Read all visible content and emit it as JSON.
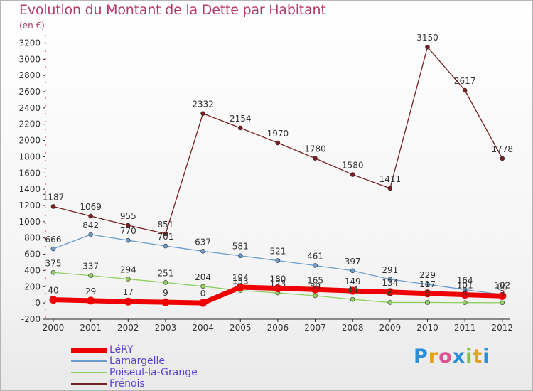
{
  "chart_data": {
    "type": "line",
    "title": "Evolution du Montant de la Dette par Habitant",
    "subtitle": "(en €)",
    "x": [
      2000,
      2001,
      2002,
      2003,
      2004,
      2005,
      2006,
      2007,
      2008,
      2009,
      2010,
      2011,
      2012
    ],
    "ylim": [
      -200,
      3300
    ],
    "yticks": [
      -200,
      0,
      200,
      400,
      600,
      800,
      1000,
      1200,
      1400,
      1600,
      1800,
      2000,
      2200,
      2400,
      2600,
      2800,
      3000,
      3200
    ],
    "grid": false,
    "legend_position": "bottom-left",
    "series": [
      {
        "name": "Frénois",
        "color": "#7a1f1f",
        "width": 1.3,
        "values": [
          1187,
          1069,
          955,
          851,
          2332,
          2154,
          1970,
          1780,
          1580,
          1411,
          3150,
          2617,
          1778
        ]
      },
      {
        "name": "Lamargelle",
        "color": "#6b9ccb",
        "width": 1.3,
        "values": [
          666,
          842,
          770,
          701,
          637,
          581,
          521,
          461,
          397,
          291,
          229,
          164,
          102
        ]
      },
      {
        "name": "Poiseul-la-Grange",
        "color": "#90d060",
        "width": 1.3,
        "values": [
          375,
          337,
          294,
          251,
          204,
          153,
          123,
          89,
          44,
          6,
          6,
          4,
          3
        ]
      },
      {
        "name": "LéRY",
        "color": "#ee0000",
        "width": 7,
        "values": [
          40,
          29,
          17,
          9,
          0,
          194,
          180,
          165,
          149,
          134,
          117,
          101,
          86
        ]
      }
    ]
  },
  "legend": [
    {
      "label": "LéRY",
      "color": "#ee0000",
      "thick": true
    },
    {
      "label": "Lamargelle",
      "color": "#6b9ccb",
      "thick": false
    },
    {
      "label": "Poiseul-la-Grange",
      "color": "#90d060",
      "thick": false
    },
    {
      "label": "Frénois",
      "color": "#7a1f1f",
      "thick": false
    }
  ],
  "brand": {
    "letters": [
      "P",
      "r",
      "o",
      "x",
      "i",
      "t",
      "i"
    ],
    "colors": [
      "#2a8fd6",
      "#e8a020",
      "#e05090",
      "#2a8fd6",
      "#80c040",
      "#e8a020",
      "#2a8fd6"
    ]
  }
}
